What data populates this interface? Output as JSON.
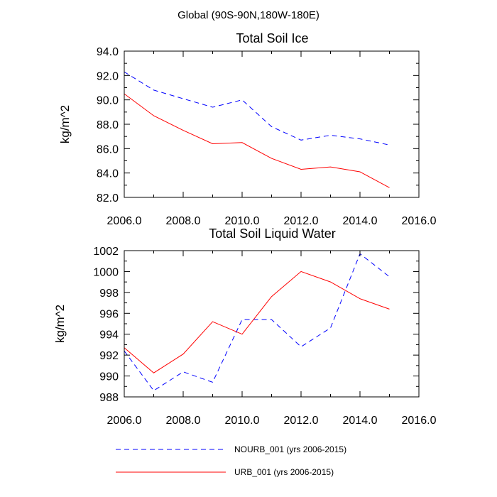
{
  "figure": {
    "suptitle": "Global (90S-90N,180W-180E)"
  },
  "legend": [
    {
      "label": "NOURB_001 (yrs 2006-2015)",
      "color": "#0000ff",
      "style": "dashed"
    },
    {
      "label": "URB_001 (yrs 2006-2015)",
      "color": "#ff0000",
      "style": "solid"
    }
  ],
  "chart_data": [
    {
      "type": "line",
      "title": "Total Soil Ice",
      "xlabel": "",
      "ylabel": "kg/m^2",
      "xlim": [
        2006,
        2016
      ],
      "ylim": [
        82,
        94
      ],
      "xticks": [
        2006,
        2008,
        2010,
        2012,
        2014,
        2016
      ],
      "xticklabels": [
        "2006.0",
        "2008.0",
        "2010.0",
        "2012.0",
        "2014.0",
        "2016.0"
      ],
      "yticks": [
        82,
        84,
        86,
        88,
        90,
        92,
        94
      ],
      "yticklabels": [
        "82.0",
        "84.0",
        "86.0",
        "88.0",
        "90.0",
        "92.0",
        "94.0"
      ],
      "x": [
        2006,
        2007,
        2008,
        2009,
        2010,
        2011,
        2012,
        2013,
        2014,
        2015
      ],
      "series": [
        {
          "name": "NOURB_001 (yrs 2006-2015)",
          "color": "#0000ff",
          "style": "dashed",
          "values": [
            92.3,
            90.8,
            90.1,
            89.4,
            90.0,
            87.8,
            86.7,
            87.1,
            86.8,
            86.3
          ]
        },
        {
          "name": "URB_001 (yrs 2006-2015)",
          "color": "#ff0000",
          "style": "solid",
          "values": [
            90.5,
            88.7,
            87.5,
            86.4,
            86.5,
            85.2,
            84.3,
            84.5,
            84.1,
            82.8
          ]
        }
      ]
    },
    {
      "type": "line",
      "title": "Total Soil Liquid Water",
      "xlabel": "",
      "ylabel": "kg/m^2",
      "xlim": [
        2006,
        2016
      ],
      "ylim": [
        988,
        1002
      ],
      "xticks": [
        2006,
        2008,
        2010,
        2012,
        2014,
        2016
      ],
      "xticklabels": [
        "2006.0",
        "2008.0",
        "2010.0",
        "2012.0",
        "2014.0",
        "2016.0"
      ],
      "yticks": [
        988,
        990,
        992,
        994,
        996,
        998,
        1000,
        1002
      ],
      "yticklabels": [
        "988",
        "990",
        "992",
        "994",
        "996",
        "998",
        "1000",
        "1002"
      ],
      "x": [
        2006,
        2007,
        2008,
        2009,
        2010,
        2011,
        2012,
        2013,
        2014,
        2015
      ],
      "series": [
        {
          "name": "NOURB_001 (yrs 2006-2015)",
          "color": "#0000ff",
          "style": "dashed",
          "values": [
            992.4,
            988.6,
            990.4,
            989.4,
            995.4,
            995.4,
            992.8,
            994.6,
            1001.7,
            999.5
          ]
        },
        {
          "name": "URB_001 (yrs 2006-2015)",
          "color": "#ff0000",
          "style": "solid",
          "values": [
            992.7,
            990.3,
            992.1,
            995.2,
            994.0,
            997.6,
            1000.0,
            999.0,
            997.4,
            996.4
          ]
        }
      ]
    }
  ]
}
